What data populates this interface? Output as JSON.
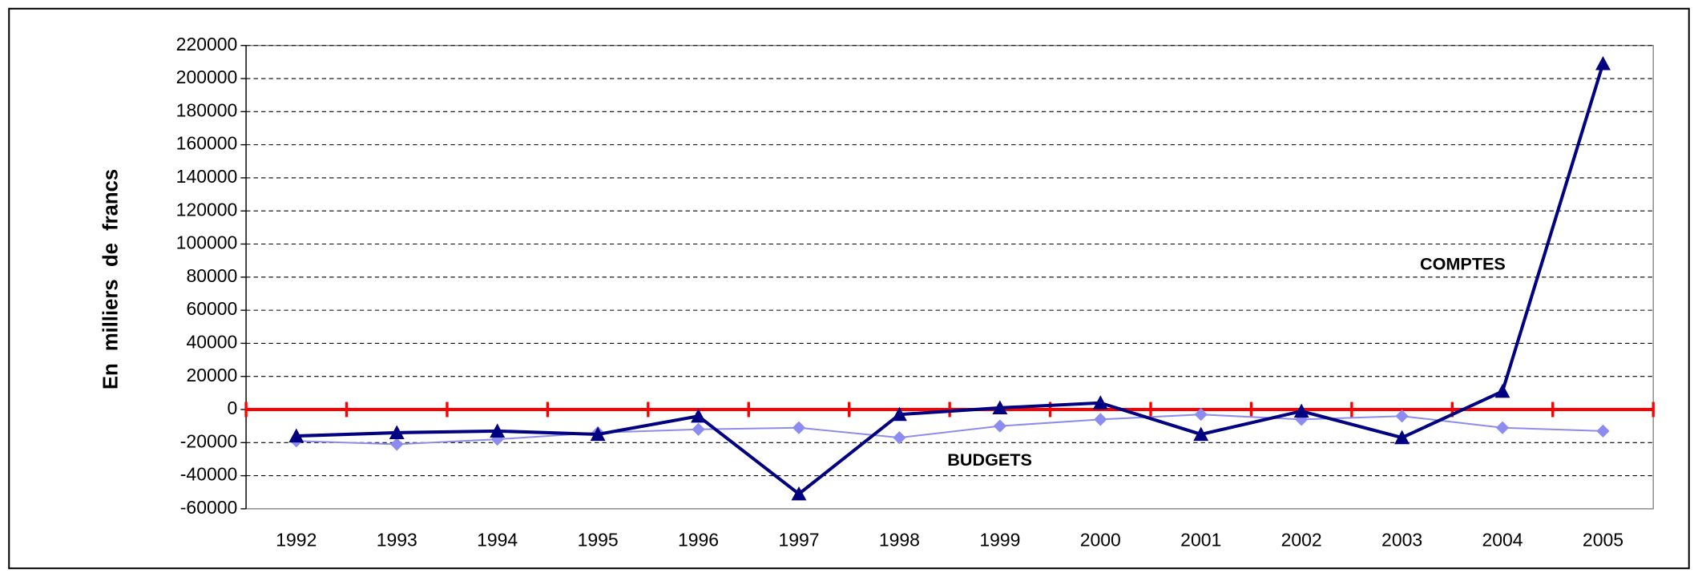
{
  "chart_data": {
    "type": "line",
    "y_label": "En milliers de francs",
    "categories": [
      "1992",
      "1993",
      "1994",
      "1995",
      "1996",
      "1997",
      "1998",
      "1999",
      "2000",
      "2001",
      "2002",
      "2003",
      "2004",
      "2005"
    ],
    "series": [
      {
        "color": "#000080",
        "marker": "triangle",
        "values": [
          -16000,
          -14000,
          -13000,
          -15000,
          -4000,
          -51000,
          -3000,
          1000,
          4000,
          -15000,
          -1000,
          -17000,
          11000,
          209000
        ]
      },
      {
        "color": "#8c8cf0",
        "marker": "diamond",
        "values": [
          -19000,
          -21000,
          -18000,
          -14000,
          -12000,
          -11000,
          -17000,
          -10000,
          -6000,
          -3000,
          -6000,
          -4000,
          -11000,
          -13000
        ]
      }
    ],
    "annotations": [
      "COMPTES",
      "BUDGETS"
    ],
    "ylim": [
      -60000,
      220000
    ],
    "yticks": [
      -60000,
      -40000,
      -20000,
      0,
      20000,
      40000,
      60000,
      80000,
      100000,
      120000,
      140000,
      160000,
      180000,
      200000,
      220000
    ],
    "grid": true,
    "zero_line_color": "#ff0000"
  }
}
